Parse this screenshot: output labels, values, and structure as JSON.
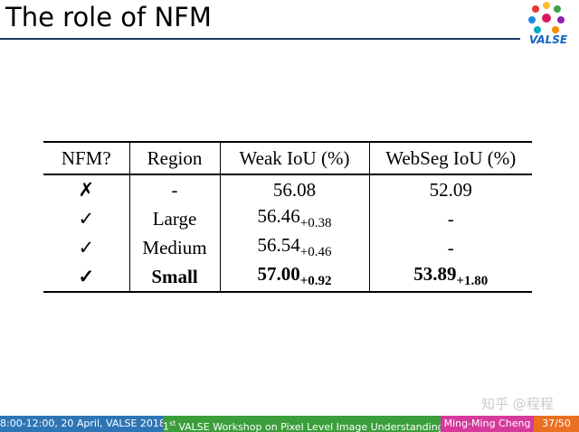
{
  "header": {
    "title": "The role of NFM",
    "logo": "VALSE"
  },
  "table": {
    "columns": [
      "NFM?",
      "Region",
      "Weak IoU (%)",
      "WebSeg IoU (%)"
    ],
    "rows": [
      [
        "✗",
        "-",
        {
          "text": "56.08"
        },
        {
          "text": "52.09"
        }
      ],
      [
        "✓",
        "Large",
        {
          "text": "56.46",
          "sub": "+0.38"
        },
        {
          "text": "-"
        }
      ],
      [
        "✓",
        "Medium",
        {
          "text": "56.54",
          "sub": "+0.46"
        },
        {
          "text": "-"
        }
      ],
      [
        "✓",
        "Small",
        {
          "text": "57.00",
          "sub": "+0.92"
        },
        {
          "text": "53.89",
          "sub": "+1.80"
        }
      ]
    ]
  },
  "watermark": "知乎 @程程",
  "footer": {
    "time": "8:00-12:00, 20 April, VALSE 2018",
    "workshop": {
      "ordinal": "1",
      "suffix": "st",
      "text": "VALSE Workshop on Pixel Level Image Understanding"
    },
    "speaker": "Ming-Ming Cheng",
    "page": "37/50"
  }
}
